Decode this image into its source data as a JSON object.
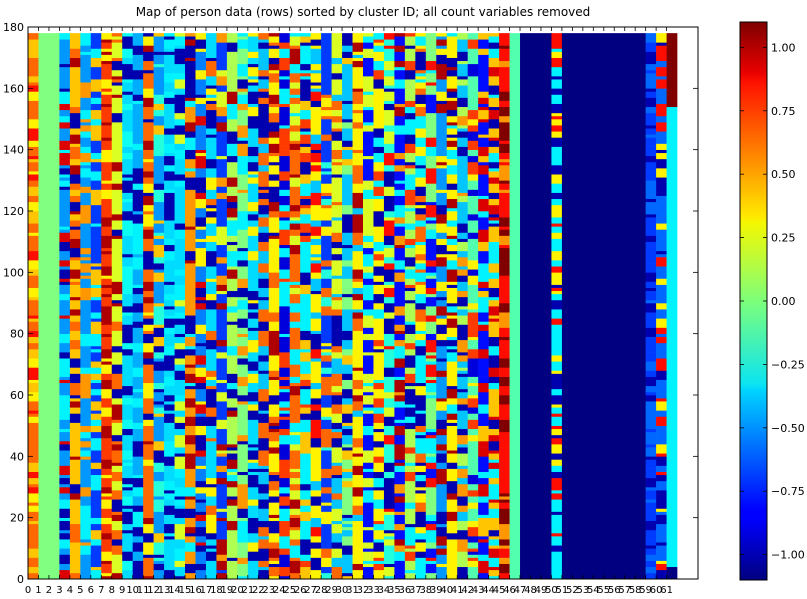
{
  "chart_data": {
    "type": "heatmap",
    "title": "Map of person data (rows) sorted by cluster ID; all count variables removed",
    "xlabel": "",
    "ylabel": "",
    "xlim": [
      0,
      64
    ],
    "ylim": [
      0,
      180
    ],
    "n_rows": 178,
    "n_cols": 62,
    "x_ticks": [
      0,
      1,
      2,
      3,
      4,
      5,
      6,
      7,
      8,
      9,
      10,
      11,
      12,
      13,
      14,
      15,
      16,
      17,
      18,
      19,
      20,
      21,
      22,
      23,
      24,
      25,
      26,
      27,
      28,
      29,
      30,
      31,
      32,
      33,
      34,
      35,
      36,
      37,
      38,
      39,
      40,
      41,
      42,
      43,
      44,
      45,
      46,
      47,
      48,
      49,
      50,
      51,
      52,
      53,
      54,
      55,
      56,
      57,
      58,
      59,
      60,
      61
    ],
    "x_tick_labels": [
      "0",
      "1",
      "2",
      "3",
      "4",
      "5",
      "6",
      "7",
      "8",
      "9",
      "10",
      "11",
      "12",
      "13",
      "14",
      "15",
      "16",
      "17",
      "18",
      "19",
      "20",
      "21",
      "22",
      "23",
      "24",
      "25",
      "26",
      "27",
      "28",
      "29",
      "30",
      "31",
      "32",
      "33",
      "34",
      "35",
      "36",
      "37",
      "38",
      "39",
      "40",
      "41",
      "42",
      "43",
      "44",
      "45",
      "46",
      "47",
      "48",
      "49",
      "50",
      "51",
      "52",
      "53",
      "54",
      "55",
      "56",
      "57",
      "58",
      "59",
      "60",
      "61"
    ],
    "y_ticks": [
      0,
      20,
      40,
      60,
      80,
      100,
      120,
      140,
      160,
      180
    ],
    "y_tick_labels": [
      "0",
      "20",
      "40",
      "60",
      "80",
      "100",
      "120",
      "140",
      "160",
      "180"
    ],
    "colormap": "jet",
    "color_range": [
      -1.1,
      1.1
    ],
    "colorbar_ticks": [
      1.0,
      0.75,
      0.5,
      0.25,
      0.0,
      -0.25,
      -0.5,
      -0.75,
      -1.0
    ],
    "colorbar_tick_labels": [
      "1.00",
      "0.75",
      "0.50",
      "0.25",
      "0.00",
      "−0.25",
      "−0.50",
      "−0.75",
      "−1.00"
    ],
    "columns": [
      {
        "col": 0,
        "pattern": "mixed",
        "base": 0.6,
        "alt": [
          0.8,
          0.3,
          0.4
        ]
      },
      {
        "col": 1,
        "constant": 0.0
      },
      {
        "col": 2,
        "constant": 0.0
      },
      {
        "col": 3,
        "pattern": "mixed",
        "base": -0.5,
        "alt": [
          -1.0,
          0.9,
          -0.3
        ]
      },
      {
        "col": 4,
        "pattern": "mixed",
        "base": 0.4,
        "alt": [
          -1.0,
          1.0,
          0.6
        ]
      },
      {
        "col": 5,
        "pattern": "mixed",
        "base": -0.5,
        "alt": [
          0.5,
          -0.3
        ]
      },
      {
        "col": 6,
        "pattern": "mixed",
        "base": -0.7,
        "alt": [
          0.4,
          -0.3
        ]
      },
      {
        "col": 7,
        "pattern": "mixed",
        "base": 0.7,
        "alt": [
          1.0,
          0.3
        ]
      },
      {
        "col": 8,
        "pattern": "mixed",
        "base": 0.2,
        "alt": [
          1.0,
          -1.0,
          0.6
        ]
      },
      {
        "col": 9,
        "pattern": "mixed",
        "base": -0.35,
        "alt": [
          -0.25,
          -1.0
        ]
      },
      {
        "col": 10,
        "pattern": "mixed",
        "base": -0.45,
        "alt": [
          -0.3,
          -1.0
        ]
      },
      {
        "col": 11,
        "pattern": "mixed",
        "base": 0.6,
        "alt": [
          -1.0,
          1.0,
          0.3
        ]
      },
      {
        "col": 12,
        "pattern": "mixed",
        "base": -0.5,
        "alt": [
          -1.0,
          0.4,
          -0.2
        ]
      },
      {
        "col": 13,
        "pattern": "mixed",
        "base": -0.35,
        "alt": [
          -0.3,
          -1.0
        ]
      },
      {
        "col": 14,
        "pattern": "mixed",
        "base": -0.35,
        "alt": [
          -0.3,
          -1.0,
          0.2
        ]
      },
      {
        "col": 15,
        "pattern": "mixed",
        "base": 0.5,
        "alt": [
          -1.0,
          1.0,
          -0.3
        ]
      },
      {
        "col": 16,
        "pattern": "mixed",
        "base": -0.55,
        "alt": [
          0.9,
          -1.0,
          0.3
        ]
      },
      {
        "col": 17,
        "pattern": "mixed",
        "base": -0.35,
        "alt": [
          0.3,
          0.6,
          -1.0
        ]
      },
      {
        "col": 18,
        "pattern": "mixed",
        "base": -0.7,
        "alt": [
          0.2,
          1.0,
          0.5
        ]
      },
      {
        "col": 19,
        "pattern": "mixed",
        "base": 0.1,
        "alt": [
          -1.0,
          1.0,
          -0.3
        ]
      },
      {
        "col": 20,
        "pattern": "mixed",
        "base": 0.0,
        "alt": [
          0.5,
          -1.0,
          -0.3
        ]
      },
      {
        "col": 21,
        "pattern": "mixed",
        "base": -0.35,
        "alt": [
          -1.0,
          0.3
        ]
      },
      {
        "col": 22,
        "pattern": "mixed",
        "base": -0.4,
        "alt": [
          0.6,
          -1.0
        ]
      },
      {
        "col": 23,
        "pattern": "mixed",
        "base": 0.3,
        "alt": [
          -1.0,
          1.0,
          0.6
        ]
      },
      {
        "col": 24,
        "pattern": "mixed",
        "base": -0.9,
        "alt": [
          0.7,
          -0.3
        ]
      },
      {
        "col": 25,
        "pattern": "mixed",
        "base": 0.6,
        "alt": [
          -0.3,
          1.0,
          0.2
        ]
      },
      {
        "col": 26,
        "pattern": "mixed",
        "base": -0.3,
        "alt": [
          0.4,
          -1.0,
          0.7
        ]
      },
      {
        "col": 27,
        "pattern": "mixed",
        "base": 0.3,
        "alt": [
          -1.0,
          0.8,
          -0.4
        ]
      },
      {
        "col": 28,
        "pattern": "mixed",
        "base": -0.7,
        "alt": [
          0.6,
          0.3,
          -0.2
        ]
      },
      {
        "col": 29,
        "pattern": "mixed",
        "base": 0.2,
        "alt": [
          -1.0,
          0.6,
          -0.4
        ]
      },
      {
        "col": 30,
        "pattern": "mixed",
        "base": -0.4,
        "alt": [
          -1.0,
          0.4,
          0.0
        ]
      },
      {
        "col": 31,
        "pattern": "mixed",
        "base": 0.3,
        "alt": [
          1.0,
          -0.4,
          0.6
        ]
      },
      {
        "col": 32,
        "pattern": "mixed",
        "base": -0.8,
        "alt": [
          0.2,
          -0.3
        ]
      },
      {
        "col": 33,
        "pattern": "mixed",
        "base": 0.3,
        "alt": [
          -1.0,
          0.7,
          -0.3
        ]
      },
      {
        "col": 34,
        "pattern": "mixed",
        "base": -0.2,
        "alt": [
          0.8,
          -1.0,
          0.2
        ]
      },
      {
        "col": 35,
        "pattern": "mixed",
        "base": -0.8,
        "alt": [
          0.5,
          1.0,
          -0.3
        ]
      },
      {
        "col": 36,
        "pattern": "mixed",
        "base": 0.1,
        "alt": [
          -1.0,
          0.7,
          -0.3
        ]
      },
      {
        "col": 37,
        "pattern": "mixed",
        "base": -0.3,
        "alt": [
          0.6,
          -1.0,
          0.3
        ]
      },
      {
        "col": 38,
        "pattern": "mixed",
        "base": 0.0,
        "alt": [
          0.8,
          -0.8,
          -0.3
        ]
      },
      {
        "col": 39,
        "pattern": "mixed",
        "base": -0.5,
        "alt": [
          1.0,
          -1.0,
          0.3
        ]
      },
      {
        "col": 40,
        "pattern": "mixed",
        "base": 0.3,
        "alt": [
          -0.3,
          1.0,
          -1.0
        ]
      },
      {
        "col": 41,
        "pattern": "mixed",
        "base": -0.4,
        "alt": [
          0.5,
          -1.0,
          0.1
        ]
      },
      {
        "col": 42,
        "pattern": "mixed",
        "base": -0.1,
        "alt": [
          -0.9,
          0.7,
          0.3
        ]
      },
      {
        "col": 43,
        "pattern": "mixed",
        "base": -0.8,
        "alt": [
          0.4,
          0.9,
          -0.3
        ]
      },
      {
        "col": 44,
        "pattern": "mixed",
        "base": 0.4,
        "alt": [
          0.9,
          -1.0,
          -0.3
        ]
      },
      {
        "col": 45,
        "pattern": "mixed",
        "base": 0.8,
        "alt": [
          1.1,
          0.5
        ]
      },
      {
        "col": 46,
        "constant": -0.1
      },
      {
        "col": 47,
        "constant": -1.1
      },
      {
        "col": 48,
        "constant": -1.1
      },
      {
        "col": 49,
        "constant": -1.1
      },
      {
        "col": 50,
        "pattern": "mixed",
        "base": -0.3,
        "alt": [
          0.8,
          0.3,
          -1.0
        ]
      },
      {
        "col": 51,
        "constant": -1.1
      },
      {
        "col": 52,
        "constant": -1.1
      },
      {
        "col": 53,
        "constant": -1.1
      },
      {
        "col": 54,
        "constant": -1.1
      },
      {
        "col": 55,
        "constant": -1.1
      },
      {
        "col": 56,
        "constant": -1.1
      },
      {
        "col": 57,
        "constant": -1.1
      },
      {
        "col": 58,
        "constant": -1.1
      },
      {
        "col": 59,
        "pattern": "mixed",
        "base": -0.7,
        "alt": [
          -1.0,
          -0.6
        ]
      },
      {
        "col": 60,
        "pattern": "mixed",
        "base": -0.6,
        "alt": [
          0.8,
          -1.0,
          0.3
        ]
      },
      {
        "col": 61,
        "segments": [
          {
            "from": 0,
            "to": 4,
            "value": -1.1
          },
          {
            "from": 4,
            "to": 154,
            "value": -0.3
          },
          {
            "from": 154,
            "to": 178,
            "value": 1.1
          }
        ]
      }
    ]
  }
}
